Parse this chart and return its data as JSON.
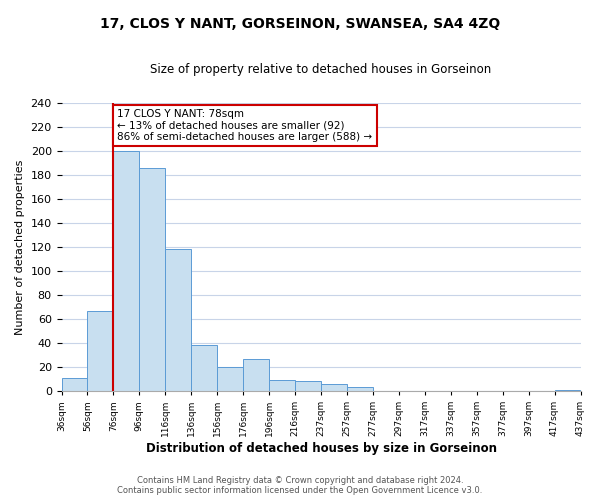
{
  "title": "17, CLOS Y NANT, GORSEINON, SWANSEA, SA4 4ZQ",
  "subtitle": "Size of property relative to detached houses in Gorseinon",
  "xlabel": "Distribution of detached houses by size in Gorseinon",
  "ylabel": "Number of detached properties",
  "bar_values": [
    11,
    67,
    200,
    186,
    118,
    38,
    20,
    27,
    9,
    8,
    6,
    3,
    0,
    0,
    0,
    0,
    0,
    0,
    0,
    1
  ],
  "bar_labels": [
    "36sqm",
    "56sqm",
    "76sqm",
    "96sqm",
    "116sqm",
    "136sqm",
    "156sqm",
    "176sqm",
    "196sqm",
    "216sqm",
    "237sqm",
    "257sqm",
    "277sqm",
    "297sqm",
    "317sqm",
    "337sqm",
    "357sqm",
    "377sqm",
    "397sqm",
    "417sqm",
    "437sqm"
  ],
  "bar_color": "#c8dff0",
  "bar_edge_color": "#5b9bd5",
  "highlight_color": "#cc0000",
  "annotation_title": "17 CLOS Y NANT: 78sqm",
  "annotation_line1": "← 13% of detached houses are smaller (92)",
  "annotation_line2": "86% of semi-detached houses are larger (588) →",
  "annotation_box_color": "#ffffff",
  "annotation_box_edge_color": "#cc0000",
  "ylim": [
    0,
    240
  ],
  "yticks": [
    0,
    20,
    40,
    60,
    80,
    100,
    120,
    140,
    160,
    180,
    200,
    220,
    240
  ],
  "footer_line1": "Contains HM Land Registry data © Crown copyright and database right 2024.",
  "footer_line2": "Contains public sector information licensed under the Open Government Licence v3.0.",
  "bg_color": "#ffffff",
  "grid_color": "#c8d4e8"
}
